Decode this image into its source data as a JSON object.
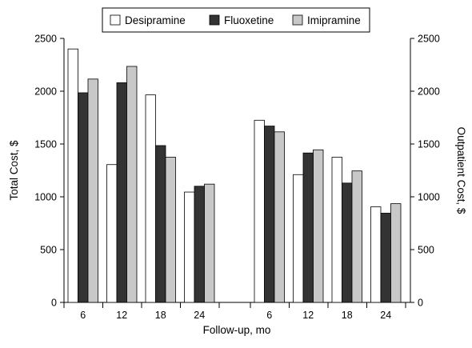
{
  "chart_data": {
    "type": "bar",
    "ylabel_left": "Total Cost, $",
    "ylabel_right": "Outpatient Cost, $",
    "xlabel": "Follow-up, mo",
    "ylim": [
      0,
      2500
    ],
    "yticks": [
      0,
      500,
      1000,
      1500,
      2000,
      2500
    ],
    "legend_position": "top",
    "series_names": [
      "Desipramine",
      "Fluoxetine",
      "Imipramine"
    ],
    "series_colors": [
      "#ffffff",
      "#333333",
      "#c8c8c8"
    ],
    "groups": [
      {
        "axis": "left",
        "categories": [
          "6",
          "12",
          "18",
          "24"
        ],
        "series": [
          {
            "name": "Desipramine",
            "values": [
              2400,
              1305,
              1965,
              1045
            ]
          },
          {
            "name": "Fluoxetine",
            "values": [
              1985,
              2080,
              1485,
              1100
            ]
          },
          {
            "name": "Imipramine",
            "values": [
              2115,
              2235,
              1375,
              1120
            ]
          }
        ]
      },
      {
        "axis": "right",
        "categories": [
          "6",
          "12",
          "18",
          "24"
        ],
        "series": [
          {
            "name": "Desipramine",
            "values": [
              1725,
              1210,
              1375,
              905
            ]
          },
          {
            "name": "Fluoxetine",
            "values": [
              1670,
              1415,
              1130,
              845
            ]
          },
          {
            "name": "Imipramine",
            "values": [
              1615,
              1445,
              1245,
              935
            ]
          }
        ]
      }
    ]
  }
}
